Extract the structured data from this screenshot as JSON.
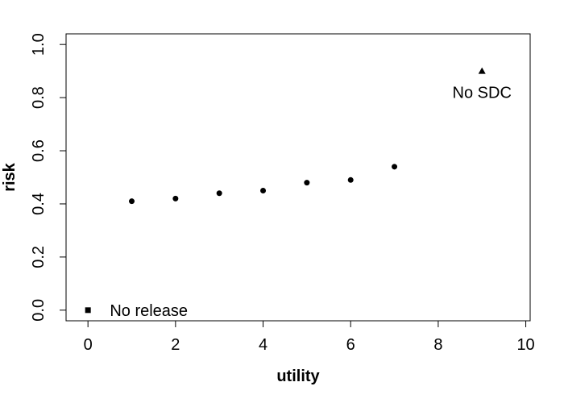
{
  "chart_data": {
    "type": "scatter",
    "title": "",
    "xlabel": "utility",
    "ylabel": "risk",
    "xlim": [
      -0.5,
      10.1
    ],
    "ylim": [
      -0.04,
      1.04
    ],
    "x_ticks": [
      0,
      2,
      4,
      6,
      8,
      10
    ],
    "y_ticks": [
      0.0,
      0.2,
      0.4,
      0.6,
      0.8,
      1.0
    ],
    "x_tick_labels": [
      "0",
      "2",
      "4",
      "6",
      "8",
      "10"
    ],
    "y_tick_labels": [
      "0.0",
      "0.2",
      "0.4",
      "0.6",
      "0.8",
      "1.0"
    ],
    "grid": false,
    "series": [
      {
        "marker": "circle",
        "x": [
          1,
          2,
          3,
          4,
          5,
          6,
          7
        ],
        "y": [
          0.41,
          0.42,
          0.44,
          0.45,
          0.48,
          0.49,
          0.54
        ]
      },
      {
        "marker": "square",
        "x": [
          0
        ],
        "y": [
          0.0
        ]
      },
      {
        "marker": "triangle",
        "x": [
          9
        ],
        "y": [
          0.9
        ]
      }
    ],
    "annotations": [
      {
        "text": "No release",
        "x": 0.5,
        "y": 0.0,
        "anchor": "start"
      },
      {
        "text": "No SDC",
        "x": 9.0,
        "y": 0.82,
        "anchor": "middle"
      }
    ]
  }
}
